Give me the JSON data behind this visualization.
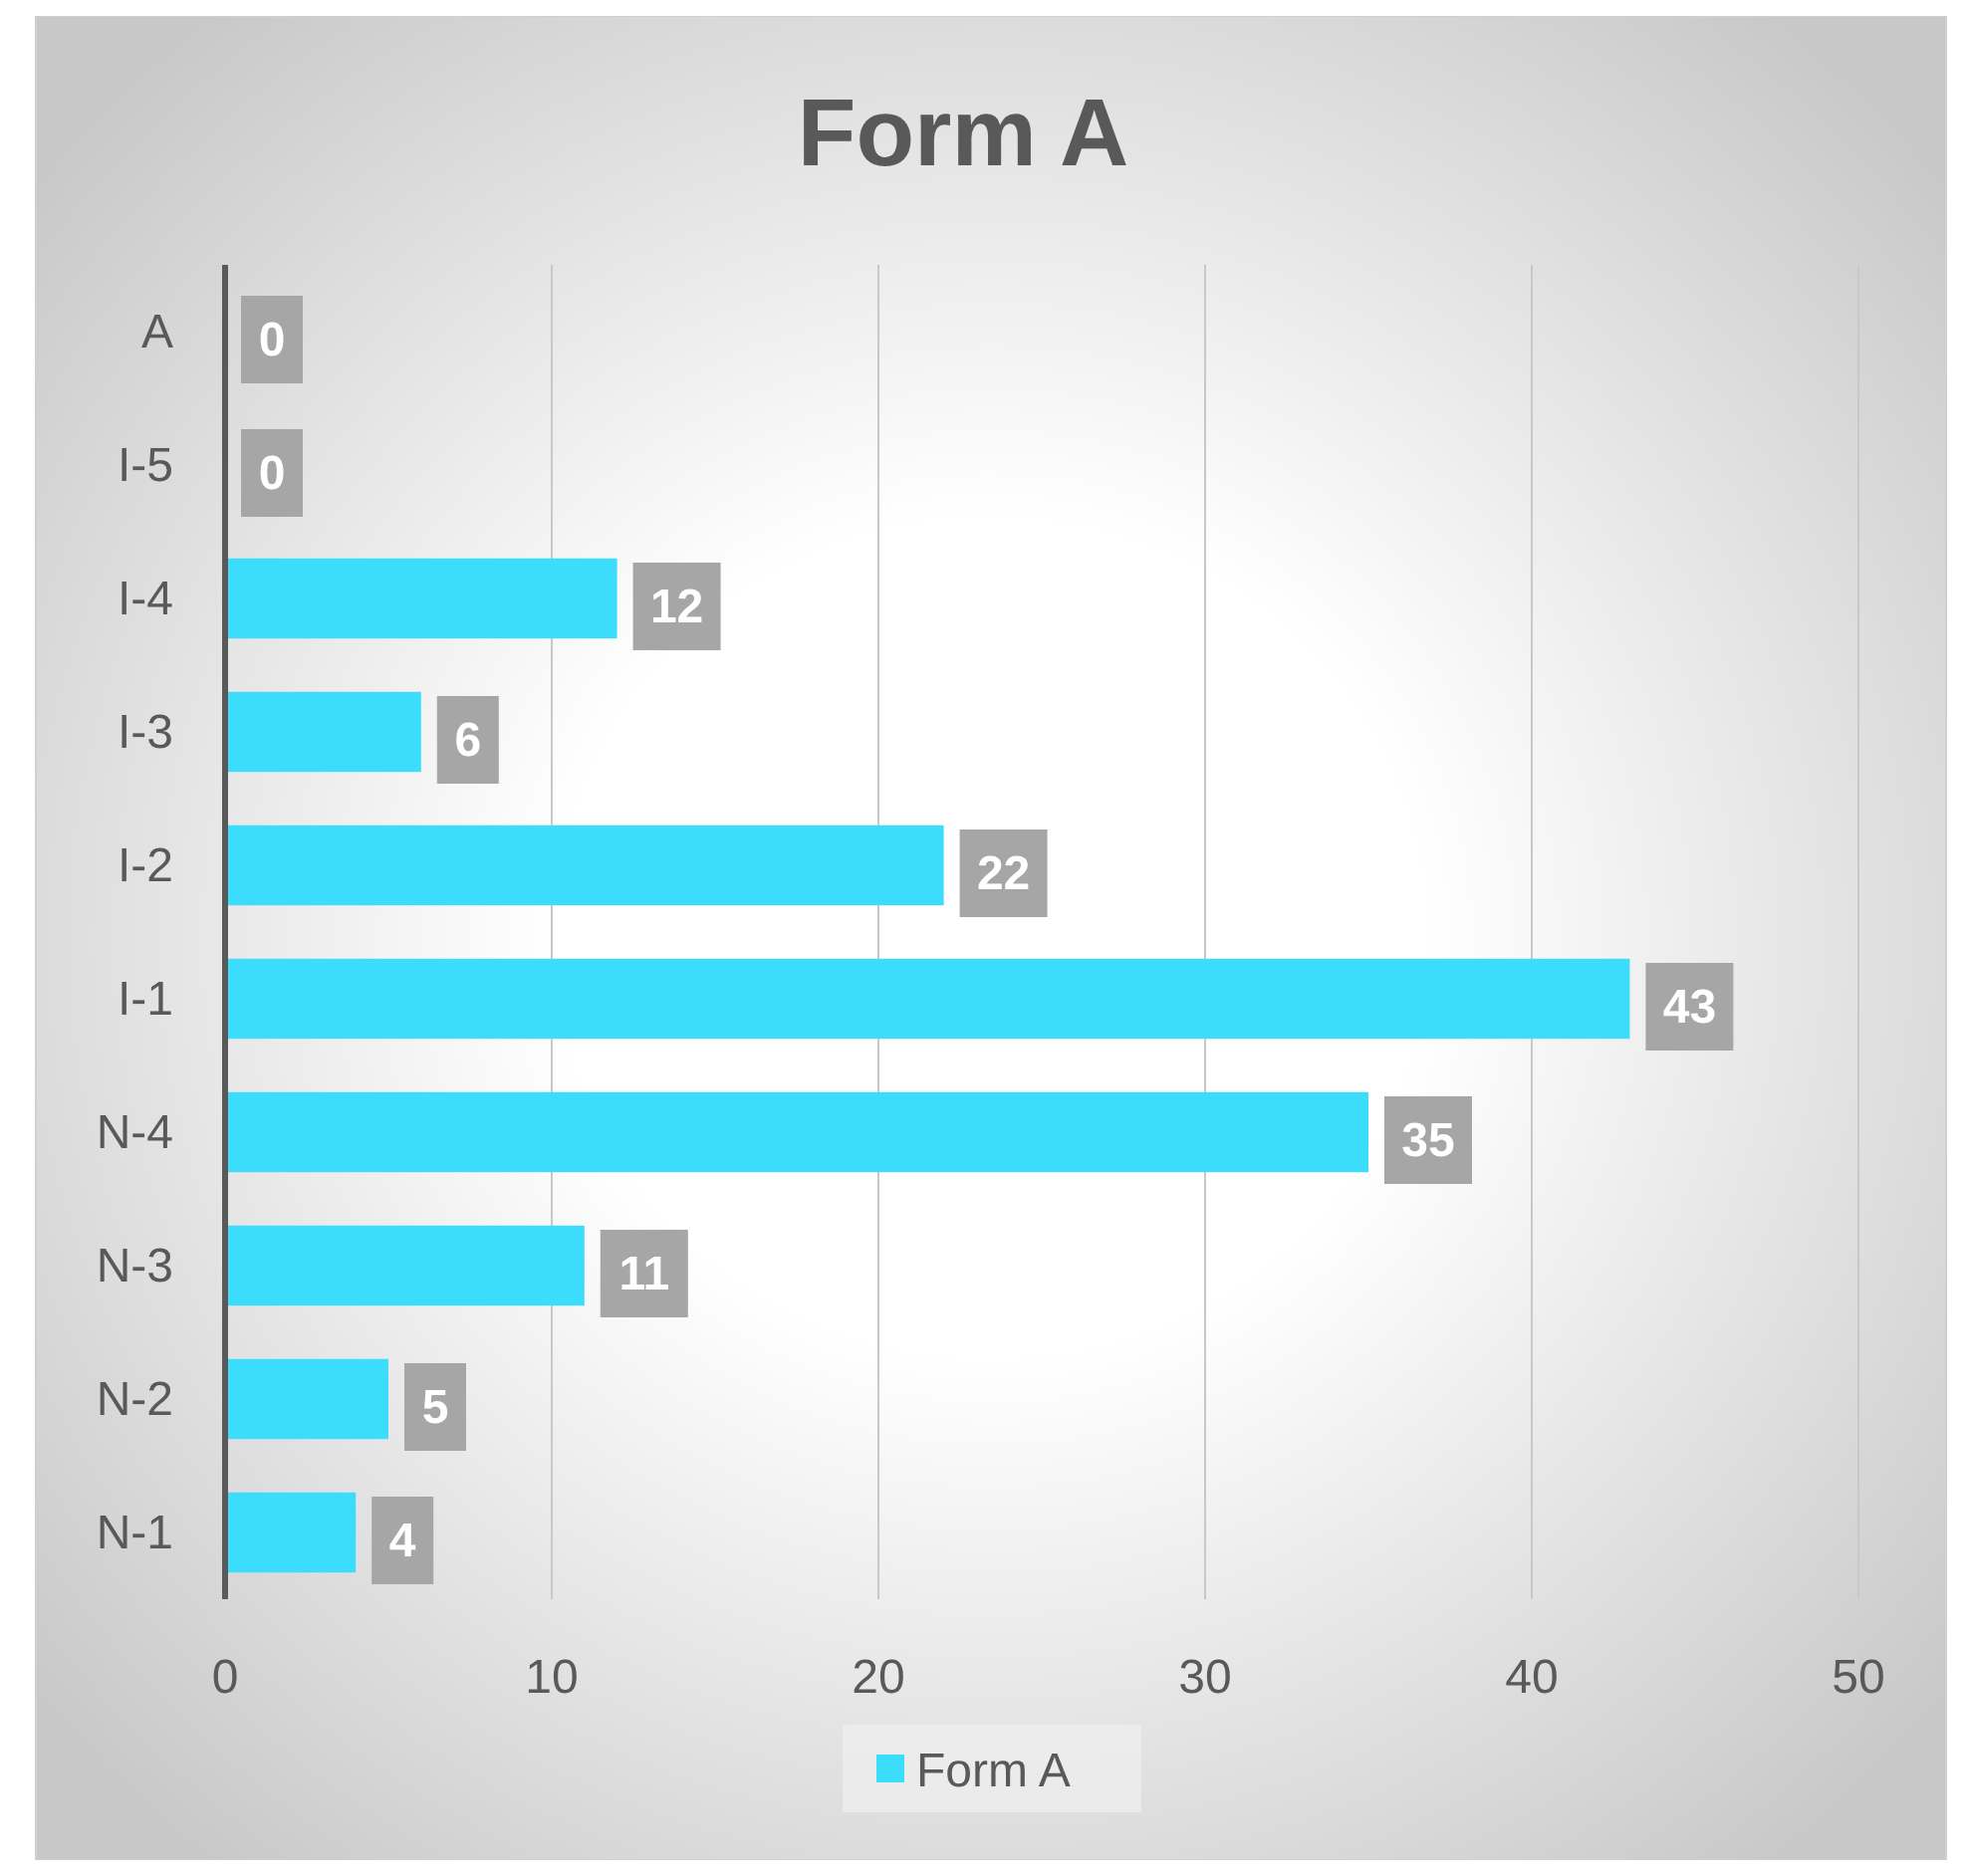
{
  "chart_data": {
    "type": "bar",
    "orientation": "horizontal",
    "title": "Form A",
    "categories": [
      "A",
      "I-5",
      "I-4",
      "I-3",
      "I-2",
      "I-1",
      "N-4",
      "N-3",
      "N-2",
      "N-1"
    ],
    "series": [
      {
        "name": "Form A",
        "color": "#3cdcfc",
        "values": [
          0,
          0,
          12,
          6,
          22,
          43,
          35,
          11,
          5,
          4
        ]
      }
    ],
    "xlim": [
      0,
      50
    ],
    "xticks": [
      0,
      10,
      20,
      30,
      40,
      50
    ],
    "grid": "x",
    "legend": "bottom",
    "data_labels": true
  }
}
